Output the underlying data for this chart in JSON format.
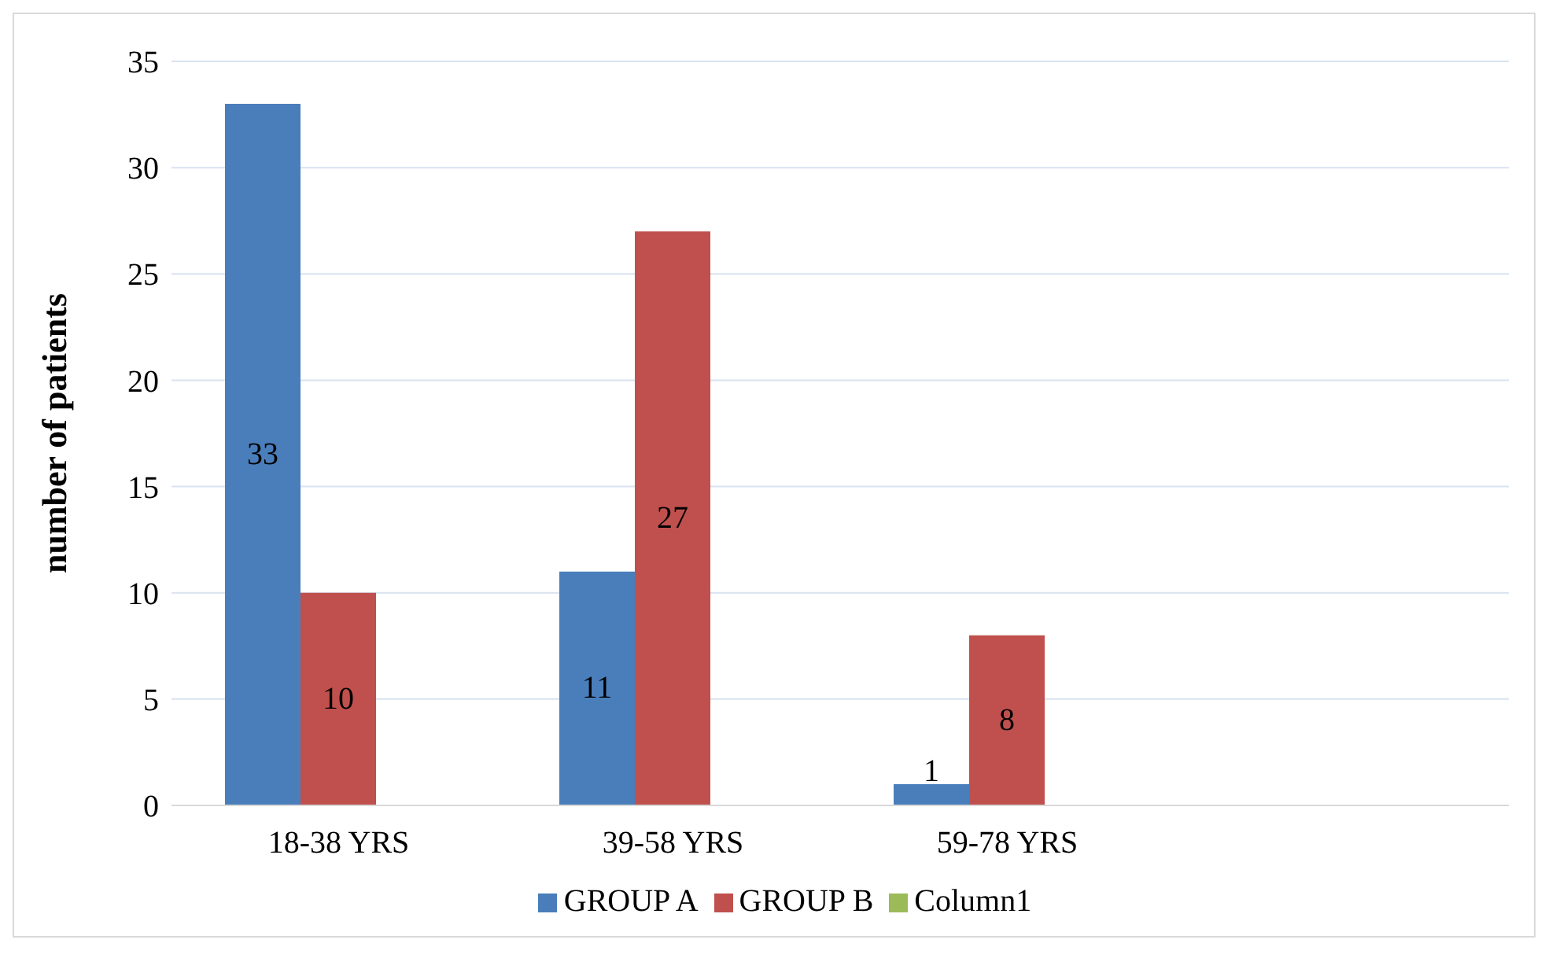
{
  "chart_data": {
    "type": "bar",
    "ylabel": "number of patients",
    "categories": [
      "18-38 YRS",
      "39-58 YRS",
      "59-78 YRS",
      null
    ],
    "series": [
      {
        "name": "GROUP A",
        "color": "#4a7ebb",
        "values": [
          33,
          11,
          1,
          null
        ]
      },
      {
        "name": "GROUP B",
        "color": "#c0504d",
        "values": [
          10,
          27,
          8,
          null
        ]
      },
      {
        "name": "Column1",
        "color": "#9bbb59",
        "values": [
          null,
          null,
          null,
          null
        ]
      }
    ],
    "ylim": [
      0,
      35
    ],
    "yticks": [
      0,
      5,
      10,
      15,
      20,
      25,
      30,
      35
    ],
    "grid": "y",
    "legend": "bottom",
    "data_labels": true
  }
}
